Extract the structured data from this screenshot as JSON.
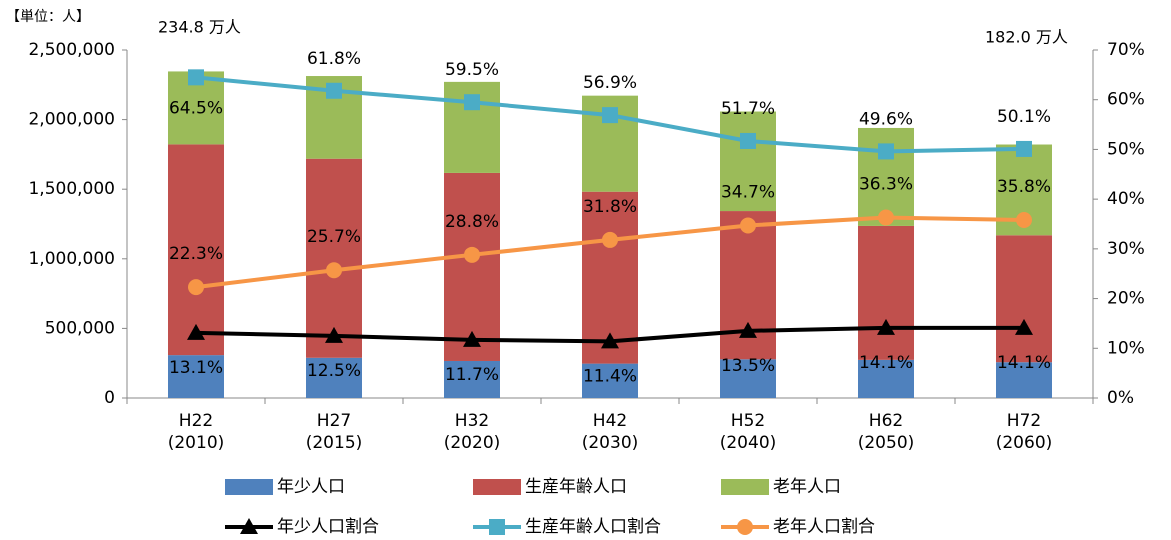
{
  "chart_data": {
    "type": "bar",
    "stacked": true,
    "annotations": [
      "【単位：人】",
      "234.8 万人",
      "182.0 万人"
    ],
    "categories": [
      "H22\n(2010)",
      "H27\n(2015)",
      "H32\n(2020)",
      "H42\n(2030)",
      "H52\n(2040)",
      "H62\n(2050)",
      "H72\n(2060)"
    ],
    "ylim": [
      0,
      2500000
    ],
    "yticks": [
      0,
      {
        "value": 500000,
        "label": "500,000"
      },
      {
        "value": 1000000,
        "label": "1,000,000"
      },
      {
        "value": 1500000,
        "label": "1,500,000"
      },
      {
        "value": 2000000,
        "label": "2,000,000"
      },
      {
        "value": 2500000,
        "label": "2,500,000"
      }
    ],
    "y2lim": [
      0,
      70
    ],
    "y2ticks": [
      {
        "value": 0,
        "label": "0%"
      },
      {
        "value": 10,
        "label": "10%"
      },
      {
        "value": 20,
        "label": "20%"
      },
      {
        "value": 30,
        "label": "30%"
      },
      {
        "value": 40,
        "label": "40%"
      },
      {
        "value": 50,
        "label": "50%"
      },
      {
        "value": 60,
        "label": "60%"
      },
      {
        "value": 70,
        "label": "70%"
      }
    ],
    "series": [
      {
        "name": "年少人口",
        "type": "bar",
        "color": "#4f81bd",
        "values": [
          308000,
          289000,
          266000,
          247000,
          278000,
          274000,
          257000
        ]
      },
      {
        "name": "生産年齢人口",
        "type": "bar",
        "color": "#c0504d",
        "values": [
          1514000,
          1430000,
          1351000,
          1235000,
          1065000,
          962000,
          912000
        ]
      },
      {
        "name": "老年人口",
        "type": "bar",
        "color": "#9bbb59",
        "values": [
          524000,
          594000,
          654000,
          690000,
          715000,
          704000,
          652000
        ]
      },
      {
        "name": "年少人口割合",
        "type": "line",
        "axis": "y2",
        "marker": "triangle",
        "color": "#000000",
        "values": [
          13.1,
          12.5,
          11.7,
          11.4,
          13.5,
          14.1,
          14.1
        ],
        "value_labels": [
          "13.1%",
          "12.5%",
          "11.7%",
          "11.4%",
          "13.5%",
          "14.1%",
          "14.1%"
        ]
      },
      {
        "name": "生産年齢人口割合",
        "type": "line",
        "axis": "y2",
        "marker": "square",
        "color": "#4bacc6",
        "values": [
          64.5,
          61.8,
          59.5,
          56.9,
          51.7,
          49.6,
          50.1
        ],
        "value_labels": [
          "64.5%",
          "61.8%",
          "59.5%",
          "56.9%",
          "51.7%",
          "49.6%",
          "50.1%"
        ]
      },
      {
        "name": "老年人口割合",
        "type": "line",
        "axis": "y2",
        "marker": "circle",
        "color": "#f79646",
        "values": [
          22.3,
          25.7,
          28.8,
          31.8,
          34.7,
          36.3,
          35.8
        ],
        "value_labels": [
          "22.3%",
          "25.7%",
          "28.8%",
          "31.8%",
          "34.7%",
          "36.3%",
          "35.8%"
        ]
      }
    ]
  }
}
